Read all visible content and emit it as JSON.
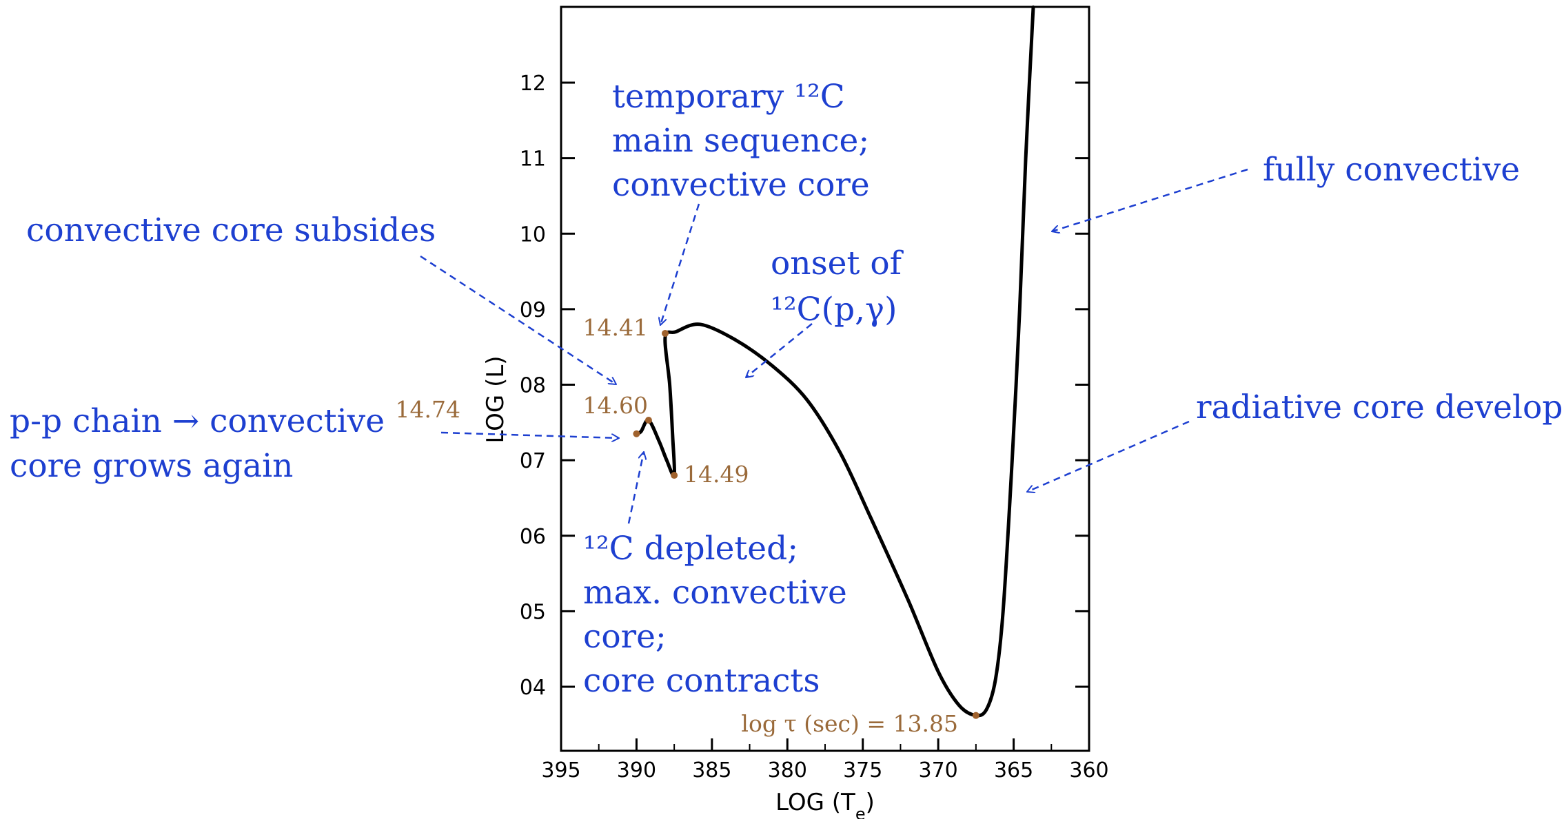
{
  "chart_data": {
    "type": "line",
    "xlabel": "LOG (T",
    "xlabel_sub": "e",
    "ylabel": "LOG (L)",
    "xlim": [
      3.95,
      3.6
    ],
    "ylim": [
      0.325,
      1.3
    ],
    "x_reversed": true,
    "x_ticks": [
      3.95,
      3.9,
      3.85,
      3.8,
      3.75,
      3.7,
      3.65,
      3.6
    ],
    "x_tick_labels": [
      "395",
      "390",
      "385",
      "380",
      "375",
      "370",
      "365",
      "360"
    ],
    "y_ticks": [
      0.4,
      0.5,
      0.6,
      0.7,
      0.8,
      0.9,
      1.0,
      1.1,
      1.2
    ],
    "y_tick_labels": [
      "04",
      "05",
      "06",
      "07",
      "08",
      "09",
      "10",
      "11",
      "12"
    ],
    "series": [
      {
        "values": [
          [
            3.637,
            1.3
          ],
          [
            3.642,
            1.1
          ],
          [
            3.646,
            0.9
          ],
          [
            3.651,
            0.7
          ],
          [
            3.657,
            0.5
          ],
          [
            3.662,
            0.41
          ],
          [
            3.668,
            0.37
          ],
          [
            3.675,
            0.362
          ],
          [
            3.686,
            0.375
          ],
          [
            3.7,
            0.42
          ],
          [
            3.72,
            0.515
          ],
          [
            3.745,
            0.625
          ],
          [
            3.765,
            0.71
          ],
          [
            3.787,
            0.78
          ],
          [
            3.81,
            0.825
          ],
          [
            3.835,
            0.86
          ],
          [
            3.858,
            0.88
          ],
          [
            3.874,
            0.87
          ],
          [
            3.881,
            0.863
          ],
          [
            3.878,
            0.8
          ],
          [
            3.876,
            0.73
          ],
          [
            3.875,
            0.68
          ],
          [
            3.88,
            0.7
          ],
          [
            3.885,
            0.725
          ],
          [
            3.892,
            0.753
          ],
          [
            3.897,
            0.738
          ],
          [
            3.9,
            0.735
          ]
        ]
      }
    ],
    "points": [
      {
        "label": "log τ (sec) = 13.85",
        "x": 3.675,
        "y": 0.362
      },
      {
        "label": "14.41",
        "x": 3.881,
        "y": 0.868
      },
      {
        "label": "14.49",
        "x": 3.875,
        "y": 0.68
      },
      {
        "label": "14.60",
        "x": 3.892,
        "y": 0.753
      },
      {
        "label": "14.74",
        "x": 3.9,
        "y": 0.735
      }
    ],
    "annotations": [
      {
        "id": "fully-convective",
        "lines": [
          "fully convective"
        ]
      },
      {
        "id": "radiative-core",
        "lines": [
          "radiative core develops"
        ]
      },
      {
        "id": "temporary-c12",
        "lines": [
          "temporary ¹²C",
          "main sequence;",
          "convective core"
        ]
      },
      {
        "id": "core-subsides",
        "lines": [
          "convective core subsides"
        ]
      },
      {
        "id": "onset-c12",
        "lines": [
          "onset of",
          "¹²C(p,γ)"
        ]
      },
      {
        "id": "pp-chain",
        "lines": [
          "p-p chain → convective",
          "core grows again"
        ]
      },
      {
        "id": "c12-depleted",
        "lines": [
          "¹²C depleted;",
          "max. convective",
          "core;",
          "core contracts"
        ]
      }
    ],
    "colors": {
      "curve": "#000000",
      "annotation": "#1d3fd0",
      "age": "#9a6a3a",
      "marker": "#a0622d"
    }
  }
}
